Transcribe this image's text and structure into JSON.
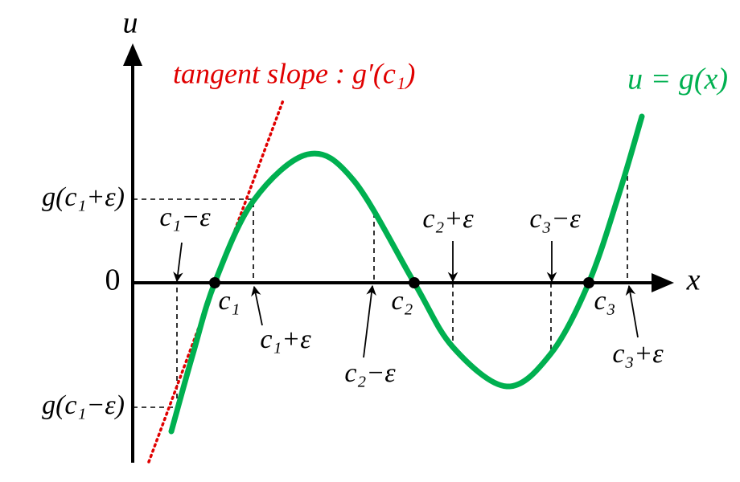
{
  "axes": {
    "y_label": "u",
    "x_label": "x",
    "origin": "0"
  },
  "tangent_label": "tangent slope : g′(c₁)",
  "curve_label": "u = g(x)",
  "y_labels": {
    "upper": "g(c₁+ε)",
    "lower": "g(c₁−ε)"
  },
  "x_labels": {
    "c1_minus": "c₁−ε",
    "c1": "c₁",
    "c1_plus": "c₁+ε",
    "c2_minus": "c₂−ε",
    "c2": "c₂",
    "c2_plus": "c₂+ε",
    "c3_minus": "c₃−ε",
    "c3": "c₃",
    "c3_plus": "c₃+ε"
  }
}
